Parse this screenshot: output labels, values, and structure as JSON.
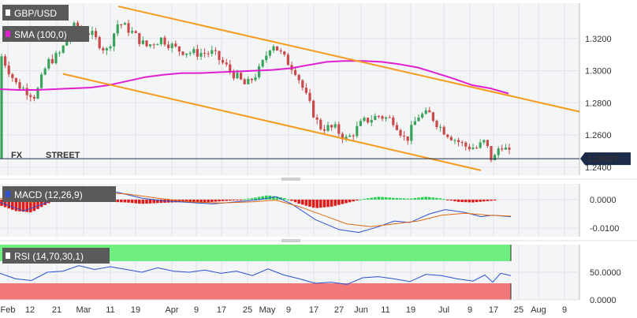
{
  "chart_data": [
    {
      "type": "candlestick",
      "symbol": "GBP/USD",
      "indicator": "SMA (100,0)",
      "watermark": "FXSTREET",
      "current_price_label": "1.24527",
      "y_ticks": [
        "1.3200",
        "1.3000",
        "1.2800",
        "1.2600",
        "1.2400"
      ],
      "ylim": [
        1.235,
        1.342
      ],
      "x_ticks": [
        "Feb",
        "12",
        "21",
        "Mar",
        "11",
        "19",
        "Apr",
        "9",
        "17",
        "25",
        "May",
        "9",
        "17",
        "27",
        "Jun",
        "11",
        "19",
        "Jul",
        "9",
        "17",
        "25",
        "Aug",
        "9"
      ],
      "colors": {
        "up": "#3aa35b",
        "down": "#c94a4a",
        "sma": "#e020d0",
        "channel": "#f59a1a",
        "price_line": "#1c2b4a"
      },
      "sma_values": [
        1.2885,
        1.288,
        1.288,
        1.2885,
        1.289,
        1.2895,
        1.291,
        1.2935,
        1.296,
        1.2975,
        1.2985,
        1.2985,
        1.299,
        1.2995,
        1.3,
        1.3005,
        1.3015,
        1.3035,
        1.3055,
        1.306,
        1.306,
        1.3055,
        1.304,
        1.302,
        1.2985,
        1.295,
        1.291,
        1.289,
        1.2858
      ],
      "channel_upper": [
        [
          1.34,
          1.2745
        ]
      ],
      "channel_lower": [
        [
          1.298,
          1.238
        ]
      ]
    },
    {
      "type": "histogram",
      "indicator": "MACD (12,26,9)",
      "y_ticks": [
        "0.0000",
        "-0.0100"
      ],
      "ylim": [
        -0.013,
        0.0055
      ]
    },
    {
      "type": "line",
      "indicator": "RSI (14,70,30,1)",
      "y_ticks": [
        "50.0000",
        "0.0000"
      ],
      "ylim": [
        0,
        100
      ],
      "overbought": 70,
      "oversold": 30
    }
  ]
}
